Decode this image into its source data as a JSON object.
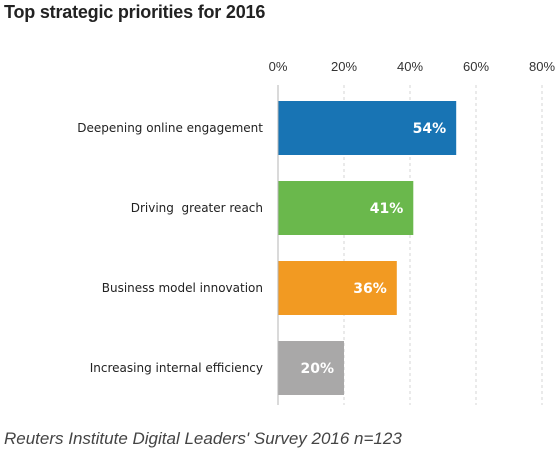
{
  "title": "Top strategic priorities for 2016",
  "source": "Reuters Institute Digital Leaders' Survey 2016 n=123",
  "chart_data": {
    "type": "bar",
    "orientation": "horizontal",
    "title": "Top strategic priorities for 2016",
    "categories": [
      "Deepening online engagement",
      "Driving  greater reach",
      "Business model innovation",
      "Increasing internal efficiency"
    ],
    "values": [
      54,
      41,
      36,
      20
    ],
    "value_labels": [
      "54%",
      "41%",
      "36%",
      "20%"
    ],
    "colors": [
      "#1874b4",
      "#6ab84c",
      "#f29a22",
      "#a9a8a8"
    ],
    "xlim": [
      0,
      80
    ],
    "ticks": [
      0,
      20,
      40,
      60,
      80
    ],
    "tick_labels": [
      "0%",
      "20%",
      "40%",
      "60%",
      "80%"
    ],
    "x_axis_position": "top",
    "grid": "vertical dashed",
    "legend": "none"
  }
}
